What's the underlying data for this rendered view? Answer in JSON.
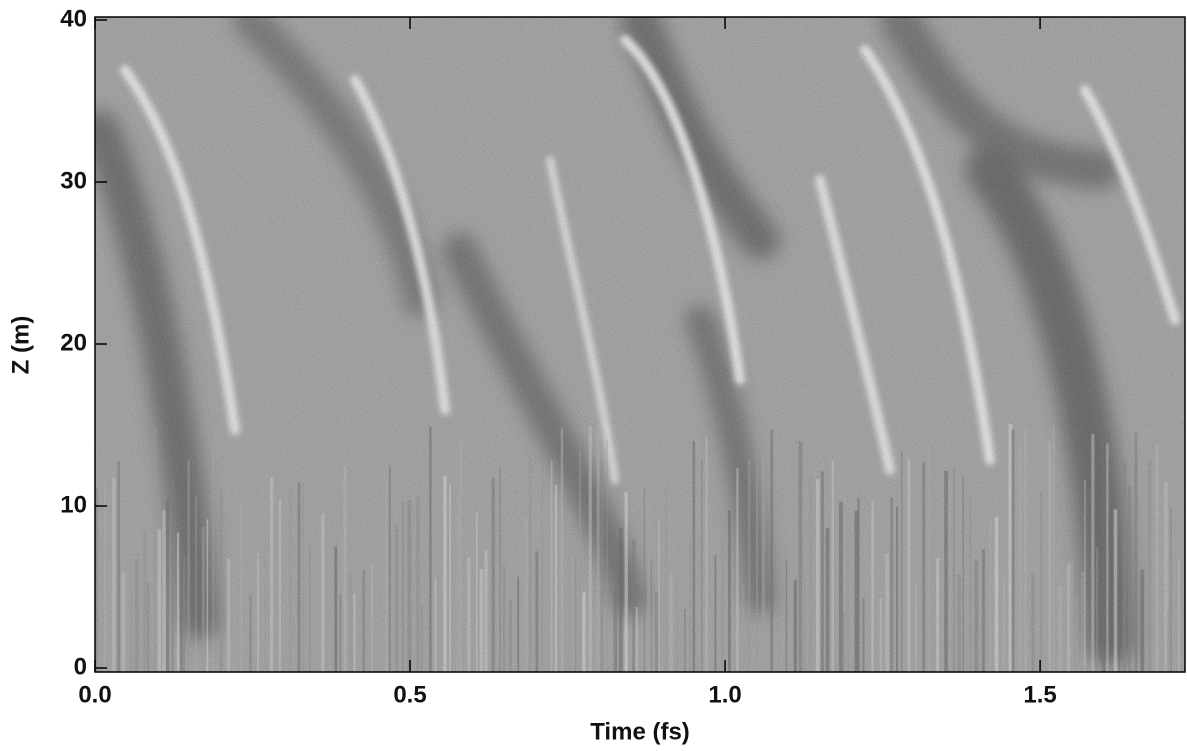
{
  "chart_data": {
    "type": "heatmap",
    "xlabel": "Time (fs)",
    "ylabel": "Z (m)",
    "xlim": [
      0,
      1.73
    ],
    "ylim": [
      0,
      40
    ],
    "xticks": [
      {
        "value": 0,
        "label": "0.0"
      },
      0.5,
      {
        "value": 1,
        "label": "1.0"
      },
      1.5
    ],
    "yticks": [
      0,
      10,
      20,
      30,
      40
    ],
    "colormap": "gray"
  }
}
